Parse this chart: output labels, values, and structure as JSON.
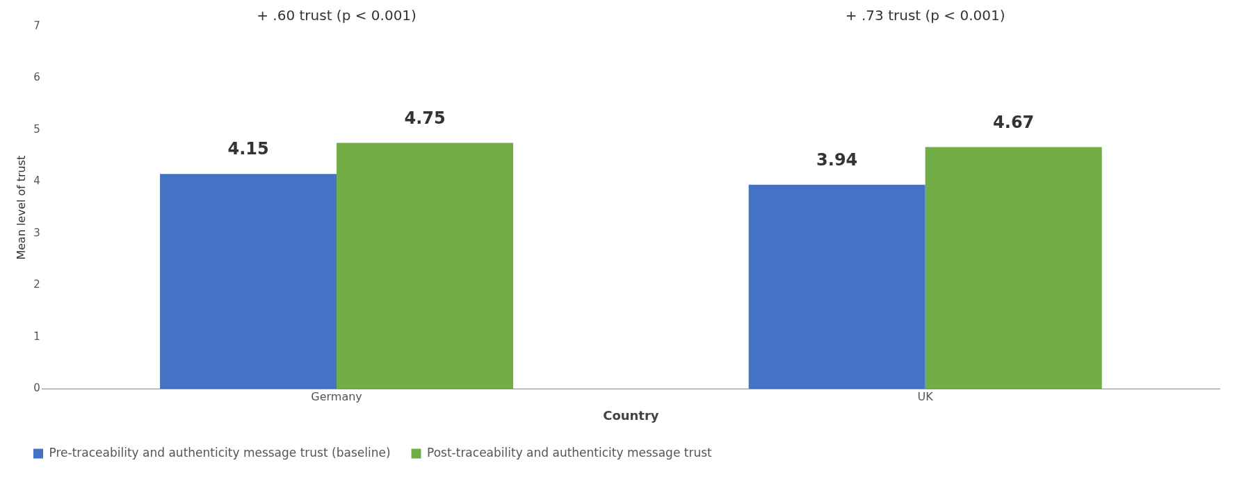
{
  "chart_data": {
    "type": "bar",
    "xlabel": "Country",
    "ylabel": "Mean level of trust",
    "categories": [
      "Germany",
      "UK"
    ],
    "series": [
      {
        "name": "Pre-traceability and authenticity message trust (baseline)",
        "color": "#4472c4",
        "values": [
          4.15,
          3.94
        ]
      },
      {
        "name": "Post-traceability and authenticity message trust",
        "color": "#70ad47",
        "values": [
          4.75,
          4.67
        ]
      }
    ],
    "ylim": [
      0,
      7
    ],
    "yticks": [
      0,
      1,
      2,
      3,
      4,
      5,
      6,
      7
    ],
    "data_labels": true,
    "legend": "bottom",
    "annotations": [
      "+ .60 trust (p < 0.001)",
      "+ .73 trust (p < 0.001)"
    ]
  }
}
